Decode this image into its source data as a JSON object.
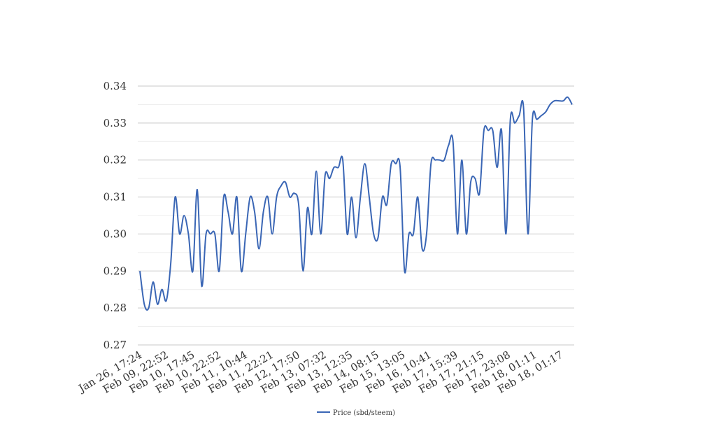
{
  "chart_data": {
    "type": "line",
    "title": "",
    "xlabel": "",
    "ylabel": "",
    "ylim": [
      0.27,
      0.34
    ],
    "yticks": [
      "0.27",
      "0.28",
      "0.29",
      "0.30",
      "0.31",
      "0.32",
      "0.33",
      "0.34"
    ],
    "yticks_minor": [
      0.275,
      0.285,
      0.295,
      0.305,
      0.315,
      0.325,
      0.335
    ],
    "xtick_labels": [
      "Jan 26, 17:24",
      "Feb 09, 22:52",
      "Feb 10, 17:45",
      "Feb 10, 22:52",
      "Feb 11, 10:44",
      "Feb 11, 22:21",
      "Feb 12, 17:50",
      "Feb 13, 07:32",
      "Feb 13, 12:35",
      "Feb 14, 08:15",
      "Feb 15, 13:05",
      "Feb 16, 10:41",
      "Feb 17, 15:39",
      "Feb 17, 21:15",
      "Feb 17, 23:08",
      "Feb 18, 01:11",
      "Feb 18, 01:17"
    ],
    "grid": true,
    "legend_position": "bottom",
    "series": [
      {
        "name": "Price (sbd/steem)",
        "color": "#3a66b5",
        "values": [
          0.29,
          0.281,
          0.28,
          0.287,
          0.281,
          0.285,
          0.282,
          0.292,
          0.31,
          0.3,
          0.305,
          0.3,
          0.29,
          0.312,
          0.286,
          0.3,
          0.3,
          0.3,
          0.29,
          0.31,
          0.306,
          0.3,
          0.31,
          0.29,
          0.3,
          0.31,
          0.306,
          0.296,
          0.306,
          0.31,
          0.3,
          0.31,
          0.313,
          0.314,
          0.31,
          0.311,
          0.308,
          0.29,
          0.307,
          0.3,
          0.317,
          0.3,
          0.316,
          0.315,
          0.318,
          0.318,
          0.32,
          0.3,
          0.31,
          0.299,
          0.31,
          0.319,
          0.31,
          0.3,
          0.299,
          0.31,
          0.308,
          0.319,
          0.319,
          0.318,
          0.29,
          0.3,
          0.3,
          0.31,
          0.296,
          0.3,
          0.319,
          0.32,
          0.32,
          0.32,
          0.324,
          0.325,
          0.3,
          0.32,
          0.3,
          0.314,
          0.315,
          0.311,
          0.328,
          0.328,
          0.328,
          0.318,
          0.328,
          0.3,
          0.331,
          0.33,
          0.332,
          0.334,
          0.3,
          0.331,
          0.331,
          0.332,
          0.333,
          0.335,
          0.336,
          0.336,
          0.336,
          0.337,
          0.335
        ]
      }
    ]
  }
}
